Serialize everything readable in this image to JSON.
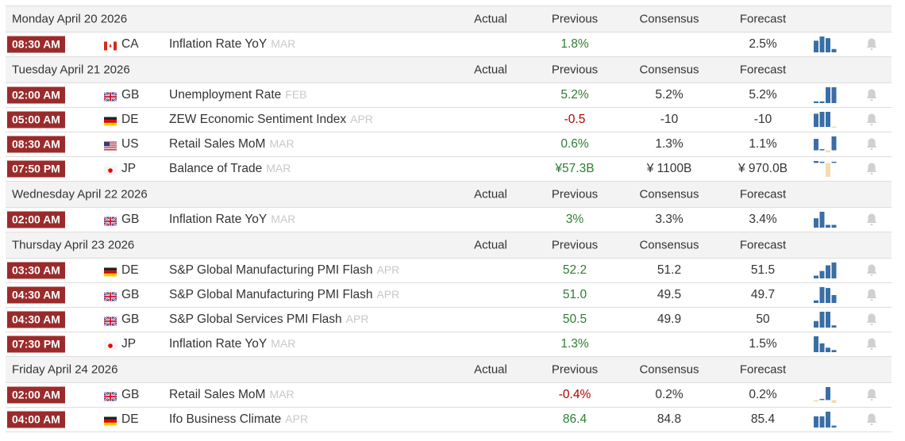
{
  "columns": {
    "actual": "Actual",
    "previous": "Previous",
    "consensus": "Consensus",
    "forecast": "Forecast"
  },
  "colors": {
    "time_badge": "#9b2b2b",
    "positive": "#2e7d32",
    "negative": "#b00000",
    "spark_bar": "#3a6fa5",
    "spark_negative": "#f3dcb0",
    "bell": "#d0d0d0"
  },
  "days": [
    {
      "date": "Monday April 20 2026",
      "events": [
        {
          "time": "08:30 AM",
          "country": "CA",
          "event": "Inflation Rate YoY",
          "ref": "MAR",
          "actual": "",
          "previous": "1.8%",
          "prev_trend": "positive",
          "consensus": "",
          "forecast": "2.5%",
          "spark": [
            0.7,
            0.95,
            0.85,
            0.2
          ],
          "icon": "bell-icon"
        }
      ]
    },
    {
      "date": "Tuesday April 21 2026",
      "events": [
        {
          "time": "02:00 AM",
          "country": "GB",
          "event": "Unemployment Rate",
          "ref": "FEB",
          "actual": "",
          "previous": "5.2%",
          "prev_trend": "positive",
          "consensus": "5.2%",
          "forecast": "5.2%",
          "spark": [
            0.1,
            0.1,
            0.9,
            0.9
          ],
          "icon": "bell-icon"
        },
        {
          "time": "05:00 AM",
          "country": "DE",
          "event": "ZEW Economic Sentiment Index",
          "ref": "APR",
          "actual": "",
          "previous": "-0.5",
          "prev_trend": "negative",
          "consensus": "-10",
          "forecast": "-10",
          "spark": [
            0.7,
            0.8,
            0.8,
            -0.04
          ],
          "icon": "bell-icon"
        },
        {
          "time": "08:30 AM",
          "country": "US",
          "event": "Retail Sales MoM",
          "ref": "MAR",
          "actual": "",
          "previous": "0.6%",
          "prev_trend": "positive",
          "consensus": "1.3%",
          "forecast": "1.1%",
          "spark": [
            0.7,
            0,
            -0.12,
            0.85
          ],
          "icon": "bell-icon"
        },
        {
          "time": "07:50 PM",
          "country": "JP",
          "event": "Balance of Trade",
          "ref": "MAR",
          "actual": "",
          "previous": "¥57.3B",
          "prev_trend": "positive",
          "consensus": "¥ 1100B",
          "forecast": "¥ 970.0B",
          "spark": [
            0.12,
            0.04,
            -0.9,
            0.04
          ],
          "icon": "bell-icon"
        }
      ]
    },
    {
      "date": "Wednesday April 22 2026",
      "events": [
        {
          "time": "02:00 AM",
          "country": "GB",
          "event": "Inflation Rate YoY",
          "ref": "MAR",
          "actual": "",
          "previous": "3%",
          "prev_trend": "positive",
          "consensus": "3.3%",
          "forecast": "3.4%",
          "spark": [
            0.5,
            0.85,
            0.15,
            0.15
          ],
          "icon": "bell-icon"
        }
      ]
    },
    {
      "date": "Thursday April 23 2026",
      "events": [
        {
          "time": "03:30 AM",
          "country": "DE",
          "event": "S&P Global Manufacturing PMI Flash",
          "ref": "APR",
          "actual": "",
          "previous": "52.2",
          "prev_trend": "positive",
          "consensus": "51.2",
          "forecast": "51.5",
          "spark": [
            0.15,
            0.4,
            0.7,
            0.85
          ],
          "icon": "bell-icon"
        },
        {
          "time": "04:30 AM",
          "country": "GB",
          "event": "S&P Global Manufacturing PMI Flash",
          "ref": "APR",
          "actual": "",
          "previous": "51.0",
          "prev_trend": "positive",
          "consensus": "49.5",
          "forecast": "49.7",
          "spark": [
            0.15,
            0.9,
            0.85,
            0.45
          ],
          "icon": "bell-icon"
        },
        {
          "time": "04:30 AM",
          "country": "GB",
          "event": "S&P Global Services PMI Flash",
          "ref": "APR",
          "actual": "",
          "previous": "50.5",
          "prev_trend": "positive",
          "consensus": "49.9",
          "forecast": "50",
          "spark": [
            0.35,
            0.85,
            0.85,
            0.12
          ],
          "icon": "bell-icon"
        },
        {
          "time": "07:30 PM",
          "country": "JP",
          "event": "Inflation Rate YoY",
          "ref": "MAR",
          "actual": "",
          "previous": "1.3%",
          "prev_trend": "positive",
          "consensus": "",
          "forecast": "1.5%",
          "spark": [
            0.9,
            0.5,
            0.25,
            0.12
          ],
          "icon": "bell-icon"
        }
      ]
    },
    {
      "date": "Friday April 24 2026",
      "events": [
        {
          "time": "02:00 AM",
          "country": "GB",
          "event": "Retail Sales MoM",
          "ref": "MAR",
          "actual": "",
          "previous": "-0.4%",
          "prev_trend": "negative",
          "consensus": "0.2%",
          "forecast": "0.2%",
          "spark": [
            -0.1,
            0.06,
            0.9,
            -0.2
          ],
          "icon": "bell-icon"
        },
        {
          "time": "04:00 AM",
          "country": "DE",
          "event": "Ifo Business Climate",
          "ref": "APR",
          "actual": "",
          "previous": "86.4",
          "prev_trend": "positive",
          "consensus": "84.8",
          "forecast": "85.4",
          "spark": [
            0.6,
            0.6,
            0.85,
            0.1
          ],
          "icon": "bell-icon"
        }
      ]
    }
  ]
}
